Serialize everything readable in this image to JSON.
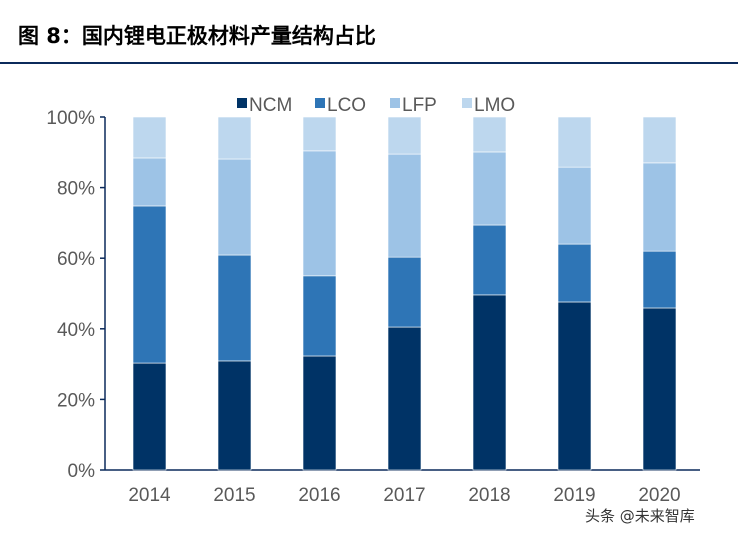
{
  "title": "图 8：国内锂电正极材料产量结构占比",
  "watermark": "头条 @未来智库",
  "chart_data": {
    "type": "bar",
    "stacked": true,
    "categories": [
      "2014",
      "2015",
      "2016",
      "2017",
      "2018",
      "2019",
      "2020"
    ],
    "series": [
      {
        "name": "NCM",
        "color": "#003366",
        "values": [
          30.3,
          30.9,
          32.3,
          40.5,
          49.6,
          47.6,
          45.9
        ]
      },
      {
        "name": "LCO",
        "color": "#2e75b6",
        "values": [
          44.5,
          30.0,
          22.7,
          19.8,
          19.8,
          16.4,
          16.1
        ]
      },
      {
        "name": "LFP",
        "color": "#9dc3e6",
        "values": [
          13.6,
          27.2,
          35.4,
          29.2,
          20.7,
          21.8,
          25.0
        ]
      },
      {
        "name": "LMO",
        "color": "#bdd7ee",
        "values": [
          11.6,
          11.9,
          9.6,
          10.5,
          9.9,
          14.2,
          13.0
        ]
      }
    ],
    "ylim": [
      0,
      100
    ],
    "yticks": [
      "0%",
      "20%",
      "40%",
      "60%",
      "80%",
      "100%"
    ],
    "legend": "top",
    "grid": false
  }
}
